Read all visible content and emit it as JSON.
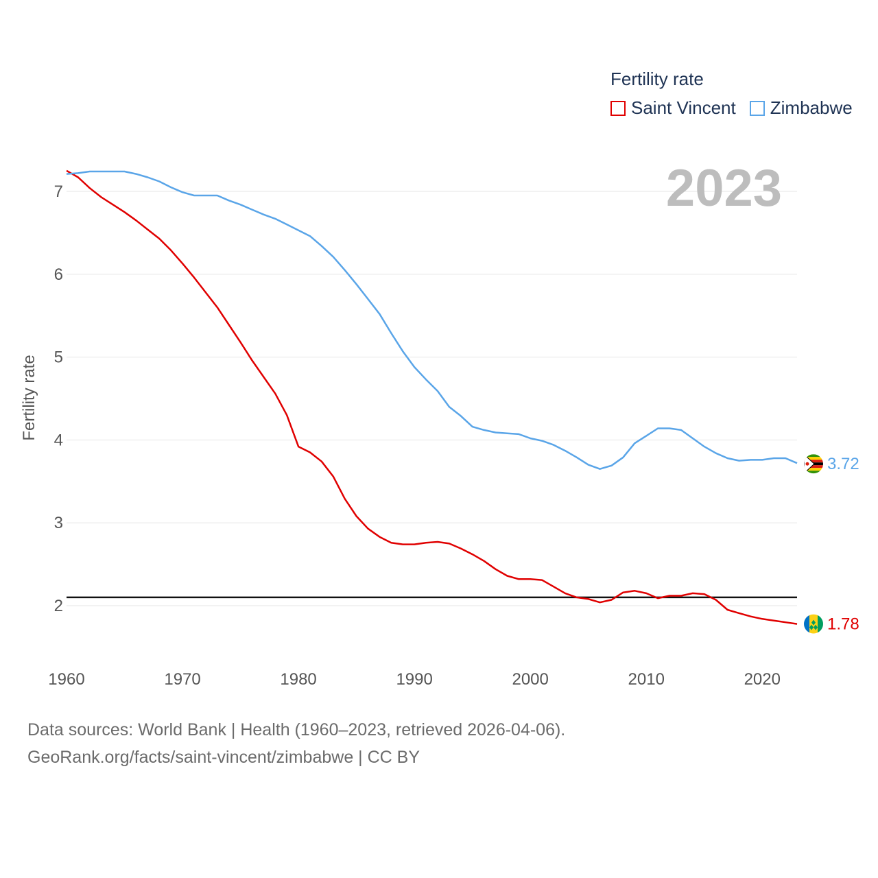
{
  "legend": {
    "title": "Fertility rate",
    "items": [
      {
        "label": "Saint Vincent",
        "color": "#e00000"
      },
      {
        "label": "Zimbabwe",
        "color": "#5aa5e8"
      }
    ]
  },
  "source": {
    "line1": "Data sources: World Bank | Health (1960–2023, retrieved 2026-04-06).",
    "line2": "GeoRank.org/facts/saint-vincent/zimbabwe | CC BY"
  },
  "chart_data": {
    "type": "line",
    "title": "Fertility rate",
    "year_label": "2023",
    "ylabel": "Fertility rate",
    "xlabel": "",
    "xlim": [
      1960,
      2023
    ],
    "ylim": [
      1.4,
      7.6
    ],
    "x_ticks": [
      1960,
      1970,
      1980,
      1990,
      2000,
      2010,
      2020
    ],
    "y_ticks": [
      2,
      3,
      4,
      5,
      6,
      7
    ],
    "reference_line": 2.1,
    "x": [
      1960,
      1961,
      1962,
      1963,
      1964,
      1965,
      1966,
      1967,
      1968,
      1969,
      1970,
      1971,
      1972,
      1973,
      1974,
      1975,
      1976,
      1977,
      1978,
      1979,
      1980,
      1981,
      1982,
      1983,
      1984,
      1985,
      1986,
      1987,
      1988,
      1989,
      1990,
      1991,
      1992,
      1993,
      1994,
      1995,
      1996,
      1997,
      1998,
      1999,
      2000,
      2001,
      2002,
      2003,
      2004,
      2005,
      2006,
      2007,
      2008,
      2009,
      2010,
      2011,
      2012,
      2013,
      2014,
      2015,
      2016,
      2017,
      2018,
      2019,
      2020,
      2021,
      2022,
      2023
    ],
    "series": [
      {
        "name": "Saint Vincent",
        "color": "#e00000",
        "end_label": "1.78",
        "values": [
          7.25,
          7.17,
          7.04,
          6.93,
          6.84,
          6.75,
          6.65,
          6.54,
          6.43,
          6.29,
          6.13,
          5.96,
          5.78,
          5.6,
          5.39,
          5.18,
          4.96,
          4.76,
          4.56,
          4.3,
          3.92,
          3.85,
          3.74,
          3.56,
          3.29,
          3.08,
          2.93,
          2.83,
          2.76,
          2.74,
          2.74,
          2.76,
          2.77,
          2.75,
          2.69,
          2.62,
          2.54,
          2.44,
          2.36,
          2.32,
          2.32,
          2.31,
          2.23,
          2.15,
          2.1,
          2.08,
          2.04,
          2.07,
          2.16,
          2.18,
          2.15,
          2.09,
          2.12,
          2.12,
          2.15,
          2.14,
          2.07,
          1.95,
          1.91,
          1.87,
          1.84,
          1.82,
          1.8,
          1.78
        ]
      },
      {
        "name": "Zimbabwe",
        "color": "#5aa5e8",
        "end_label": "3.72",
        "values": [
          7.21,
          7.22,
          7.24,
          7.24,
          7.24,
          7.24,
          7.21,
          7.17,
          7.12,
          7.05,
          6.99,
          6.95,
          6.95,
          6.95,
          6.89,
          6.84,
          6.78,
          6.72,
          6.67,
          6.6,
          6.53,
          6.46,
          6.34,
          6.21,
          6.05,
          5.88,
          5.7,
          5.52,
          5.29,
          5.07,
          4.88,
          4.73,
          4.59,
          4.4,
          4.29,
          4.16,
          4.12,
          4.09,
          4.08,
          4.07,
          4.02,
          3.99,
          3.94,
          3.87,
          3.79,
          3.7,
          3.65,
          3.69,
          3.79,
          3.96,
          4.05,
          4.14,
          4.14,
          4.12,
          4.02,
          3.92,
          3.84,
          3.78,
          3.75,
          3.76,
          3.76,
          3.78,
          3.78,
          3.72
        ]
      }
    ]
  }
}
